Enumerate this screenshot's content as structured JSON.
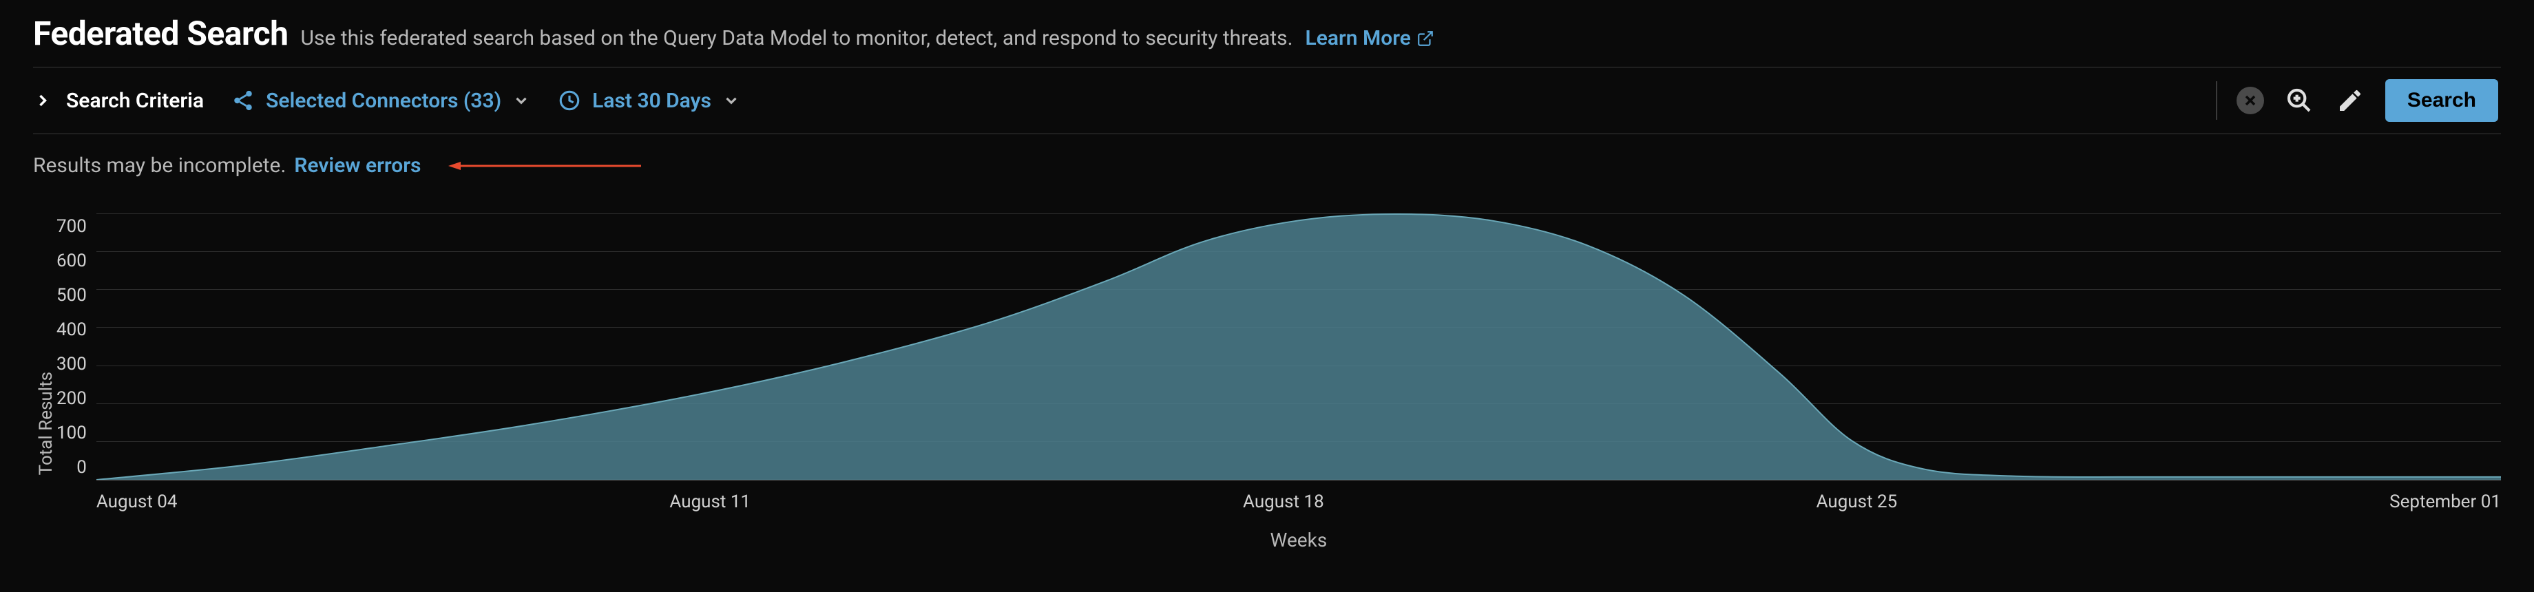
{
  "header": {
    "title": "Federated Search",
    "subtitle": "Use this federated search based on the Query Data Model to monitor, detect, and respond to security threats.",
    "learn_more_label": "Learn More"
  },
  "toolbar": {
    "criteria_label": "Search Criteria",
    "connectors_label": "Selected Connectors (33)",
    "timerange_label": "Last 30 Days",
    "search_label": "Search"
  },
  "status": {
    "message": "Results may be incomplete.",
    "review_label": "Review errors",
    "annotation_color": "#e84a2e"
  },
  "chart": {
    "type": "area",
    "y_label": "Total Results",
    "x_label": "Weeks",
    "ylim": [
      0,
      750
    ],
    "y_ticks": [
      700,
      600,
      500,
      400,
      300,
      200,
      100,
      0
    ],
    "x_ticks": [
      "August 04",
      "August 11",
      "August 18",
      "August 25",
      "September 01"
    ],
    "series_fill": "#4c7f8e",
    "series_fill_opacity": 0.85,
    "series_stroke": "#6aa8b8",
    "series_stroke_width": 2,
    "grid_color": "#2e2e2e",
    "background_color": "#0a0a0a",
    "points": [
      {
        "x": 0.0,
        "y": 0
      },
      {
        "x": 0.06,
        "y": 40
      },
      {
        "x": 0.12,
        "y": 95
      },
      {
        "x": 0.18,
        "y": 155
      },
      {
        "x": 0.25,
        "y": 240
      },
      {
        "x": 0.31,
        "y": 330
      },
      {
        "x": 0.37,
        "y": 440
      },
      {
        "x": 0.42,
        "y": 560
      },
      {
        "x": 0.46,
        "y": 670
      },
      {
        "x": 0.5,
        "y": 730
      },
      {
        "x": 0.54,
        "y": 748
      },
      {
        "x": 0.58,
        "y": 730
      },
      {
        "x": 0.62,
        "y": 660
      },
      {
        "x": 0.66,
        "y": 520
      },
      {
        "x": 0.7,
        "y": 300
      },
      {
        "x": 0.73,
        "y": 110
      },
      {
        "x": 0.76,
        "y": 30
      },
      {
        "x": 0.8,
        "y": 10
      },
      {
        "x": 0.86,
        "y": 8
      },
      {
        "x": 0.93,
        "y": 8
      },
      {
        "x": 1.0,
        "y": 8
      }
    ]
  },
  "colors": {
    "accent": "#5aa6d8",
    "text_muted": "#b8b8b8",
    "text": "#e0e0e0",
    "divider": "#3a3a3a"
  }
}
